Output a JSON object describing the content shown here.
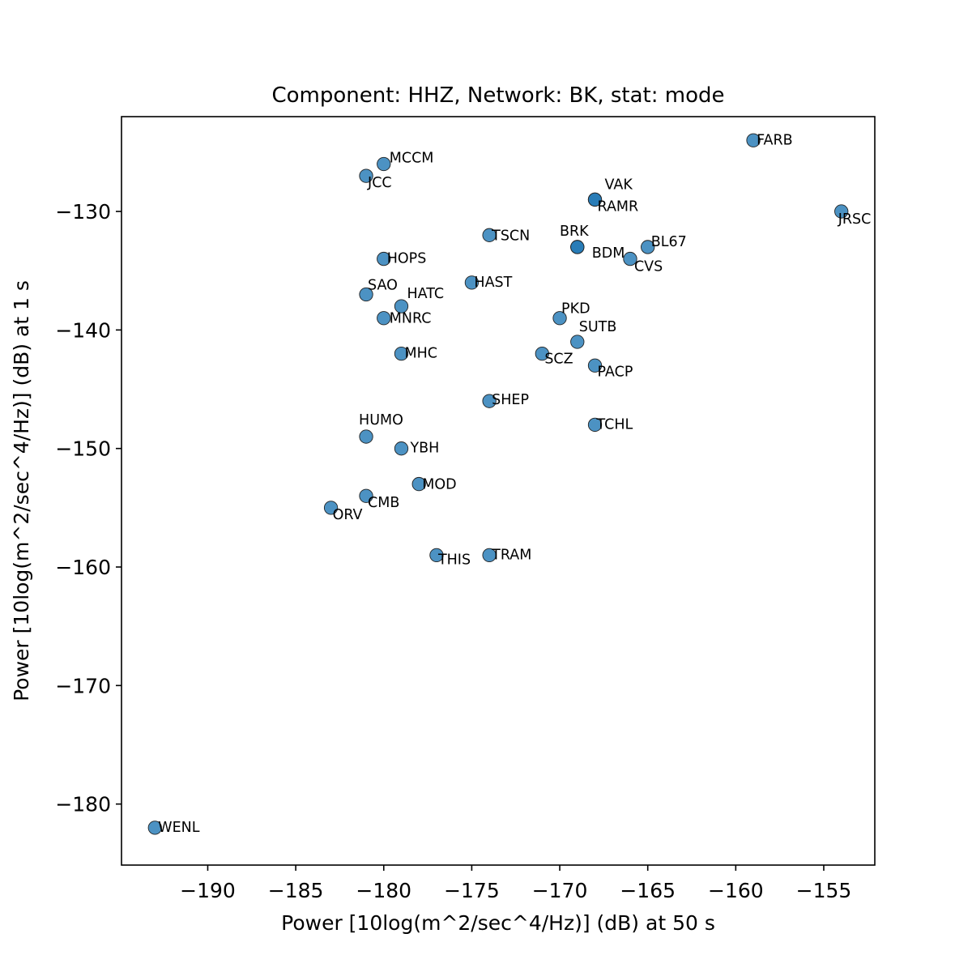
{
  "chart_data": {
    "type": "scatter",
    "title": "Component: HHZ, Network: BK, stat: mode",
    "xlabel": "Power [10log(m^2/sec^4/Hz)] (dB) at 50 s",
    "ylabel": "Power [10log(m^2/sec^4/Hz)] (dB) at 1 s",
    "xlim": [
      -194.9,
      -152.1
    ],
    "ylim": [
      -185.15,
      -122.0
    ],
    "xticks": [
      -190,
      -185,
      -180,
      -175,
      -170,
      -165,
      -160,
      -155
    ],
    "yticks": [
      -180,
      -170,
      -160,
      -150,
      -140,
      -130
    ],
    "xtick_labels": [
      "−190",
      "−185",
      "−180",
      "−175",
      "−170",
      "−165",
      "−160",
      "−155"
    ],
    "ytick_labels": [
      "−180",
      "−170",
      "−160",
      "−150",
      "−140",
      "−130"
    ],
    "grid": false,
    "marker_color": "#1f77b4",
    "points": [
      {
        "label": "FARB",
        "x": -159,
        "y": -124
      },
      {
        "label": "MCCM",
        "x": -180,
        "y": -126
      },
      {
        "label": "JCC",
        "x": -181,
        "y": -127
      },
      {
        "label": "VAK",
        "x": -168,
        "y": -129
      },
      {
        "label": "RAMR",
        "x": -168,
        "y": -129
      },
      {
        "label": "JRSC",
        "x": -154,
        "y": -130
      },
      {
        "label": "TSCN",
        "x": -174,
        "y": -132
      },
      {
        "label": "BRK",
        "x": -169,
        "y": -133
      },
      {
        "label": "BDM",
        "x": -169,
        "y": -133
      },
      {
        "label": "BL67",
        "x": -165,
        "y": -133
      },
      {
        "label": "CVS",
        "x": -166,
        "y": -134
      },
      {
        "label": "HOPS",
        "x": -180,
        "y": -134
      },
      {
        "label": "HAST",
        "x": -175,
        "y": -136
      },
      {
        "label": "SAO",
        "x": -181,
        "y": -137
      },
      {
        "label": "HATC",
        "x": -179,
        "y": -138
      },
      {
        "label": "MNRC",
        "x": -180,
        "y": -139
      },
      {
        "label": "PKD",
        "x": -170,
        "y": -139
      },
      {
        "label": "SUTB",
        "x": -169,
        "y": -141
      },
      {
        "label": "MHC",
        "x": -179,
        "y": -142
      },
      {
        "label": "SCZ",
        "x": -171,
        "y": -142
      },
      {
        "label": "PACP",
        "x": -168,
        "y": -143
      },
      {
        "label": "SHEP",
        "x": -174,
        "y": -146
      },
      {
        "label": "TCHL",
        "x": -168,
        "y": -148
      },
      {
        "label": "HUMO",
        "x": -181,
        "y": -149
      },
      {
        "label": "YBH",
        "x": -179,
        "y": -150
      },
      {
        "label": "MOD",
        "x": -178,
        "y": -153
      },
      {
        "label": "CMB",
        "x": -181,
        "y": -154
      },
      {
        "label": "ORV",
        "x": -183,
        "y": -155
      },
      {
        "label": "THIS",
        "x": -177,
        "y": -159
      },
      {
        "label": "TRAM",
        "x": -174,
        "y": -159
      },
      {
        "label": "WENL",
        "x": -193,
        "y": -182
      }
    ]
  }
}
